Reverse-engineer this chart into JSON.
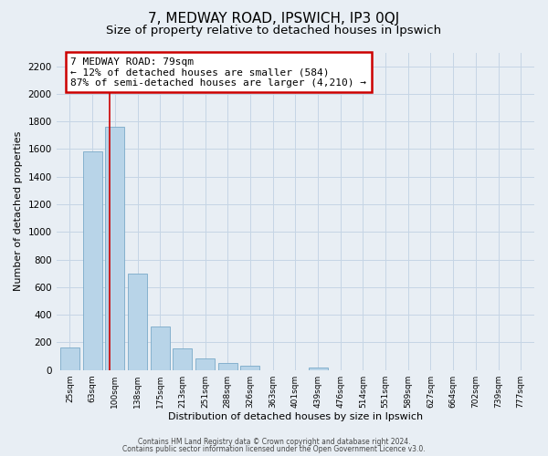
{
  "title": "7, MEDWAY ROAD, IPSWICH, IP3 0QJ",
  "subtitle": "Size of property relative to detached houses in Ipswich",
  "xlabel": "Distribution of detached houses by size in Ipswich",
  "ylabel": "Number of detached properties",
  "categories": [
    "25sqm",
    "63sqm",
    "100sqm",
    "138sqm",
    "175sqm",
    "213sqm",
    "251sqm",
    "288sqm",
    "326sqm",
    "363sqm",
    "401sqm",
    "439sqm",
    "476sqm",
    "514sqm",
    "551sqm",
    "589sqm",
    "627sqm",
    "664sqm",
    "702sqm",
    "739sqm",
    "777sqm"
  ],
  "values": [
    160,
    1585,
    1760,
    700,
    315,
    155,
    85,
    50,
    30,
    0,
    0,
    20,
    0,
    0,
    0,
    0,
    0,
    0,
    0,
    0,
    0
  ],
  "bar_color": "#b8d4e8",
  "bar_edge_color": "#7aaac8",
  "redline_color": "#cc0000",
  "annotation_title": "7 MEDWAY ROAD: 79sqm",
  "annotation_line1": "← 12% of detached houses are smaller (584)",
  "annotation_line2": "87% of semi-detached houses are larger (4,210) →",
  "footer1": "Contains HM Land Registry data © Crown copyright and database right 2024.",
  "footer2": "Contains public sector information licensed under the Open Government Licence v3.0.",
  "ylim": [
    0,
    2300
  ],
  "yticks": [
    0,
    200,
    400,
    600,
    800,
    1000,
    1200,
    1400,
    1600,
    1800,
    2000,
    2200
  ],
  "bg_color": "#e8eef4",
  "plot_bg_color": "#e8eef4",
  "grid_color": "#c5d5e5",
  "title_fontsize": 11,
  "subtitle_fontsize": 9.5,
  "annotation_box_color": "#ffffff",
  "annotation_box_edgecolor": "#cc0000",
  "redline_x": 1.75
}
